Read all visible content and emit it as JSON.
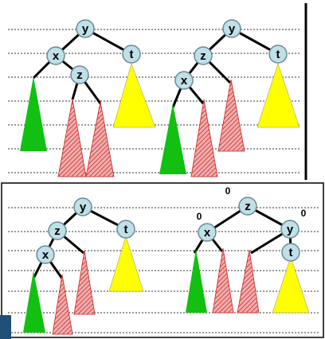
{
  "diagrams": [
    {
      "nodes": [
        {
          "id": "y",
          "label": "y"
        },
        {
          "id": "x",
          "label": "x"
        },
        {
          "id": "z",
          "label": "z"
        },
        {
          "id": "t",
          "label": "t"
        }
      ],
      "subtrees": [
        {
          "color": "green",
          "hatch": false
        },
        {
          "color": "pink",
          "hatch": true
        },
        {
          "color": "pink",
          "hatch": true
        },
        {
          "color": "yellow",
          "hatch": false
        }
      ]
    },
    {
      "nodes": [
        {
          "id": "y",
          "label": "y"
        },
        {
          "id": "z",
          "label": "z"
        },
        {
          "id": "x",
          "label": "x"
        },
        {
          "id": "t",
          "label": "t"
        }
      ],
      "subtrees": [
        {
          "color": "green",
          "hatch": false
        },
        {
          "color": "pink",
          "hatch": true
        },
        {
          "color": "pink",
          "hatch": true
        },
        {
          "color": "yellow",
          "hatch": false
        }
      ]
    },
    {
      "nodes": [
        {
          "id": "y",
          "label": "y"
        },
        {
          "id": "z",
          "label": "z"
        },
        {
          "id": "x",
          "label": "x"
        },
        {
          "id": "t",
          "label": "t"
        }
      ],
      "subtrees": [
        {
          "color": "green",
          "hatch": false
        },
        {
          "color": "pink",
          "hatch": true
        },
        {
          "color": "pink",
          "hatch": true
        },
        {
          "color": "yellow",
          "hatch": false
        }
      ]
    },
    {
      "nodes": [
        {
          "id": "z",
          "label": "z"
        },
        {
          "id": "x",
          "label": "x"
        },
        {
          "id": "y",
          "label": "y"
        },
        {
          "id": "t",
          "label": "t"
        }
      ],
      "balance_labels": [
        "0",
        "0",
        "0"
      ],
      "subtrees": [
        {
          "color": "green",
          "hatch": false
        },
        {
          "color": "pink",
          "hatch": true
        },
        {
          "color": "pink",
          "hatch": true
        },
        {
          "color": "yellow",
          "hatch": false
        }
      ]
    }
  ],
  "colors": {
    "node_fill": "#bfe0e8",
    "node_stroke": "#6a8a94",
    "green": "#11c011",
    "yellow": "#ffff00",
    "pink_fill": "#f2b0b0",
    "pink_hatch": "#cc2222",
    "panel_border": "#000000",
    "dotted_line": "#333333"
  }
}
